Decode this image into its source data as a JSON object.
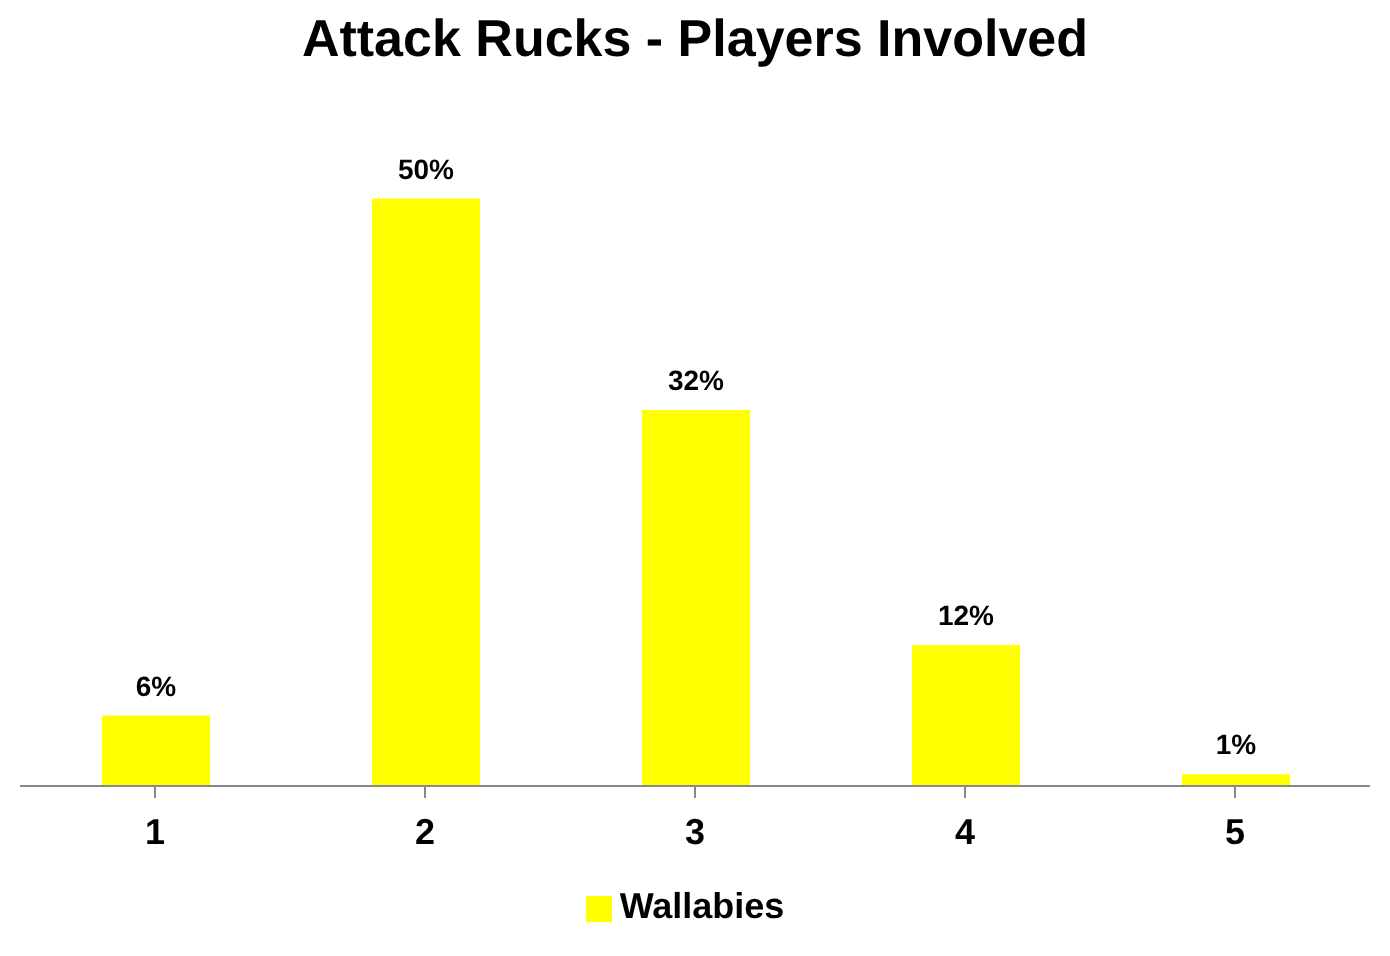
{
  "chart_data": {
    "type": "bar",
    "title": "Attack Rucks - Players Involved",
    "categories": [
      "1",
      "2",
      "3",
      "4",
      "5"
    ],
    "series": [
      {
        "name": "Wallabies",
        "color": "#ffff00",
        "values": [
          6,
          50,
          32,
          12,
          1
        ],
        "value_labels": [
          "6%",
          "50%",
          "32%",
          "12%",
          "1%"
        ]
      }
    ],
    "legend": "bottom"
  }
}
